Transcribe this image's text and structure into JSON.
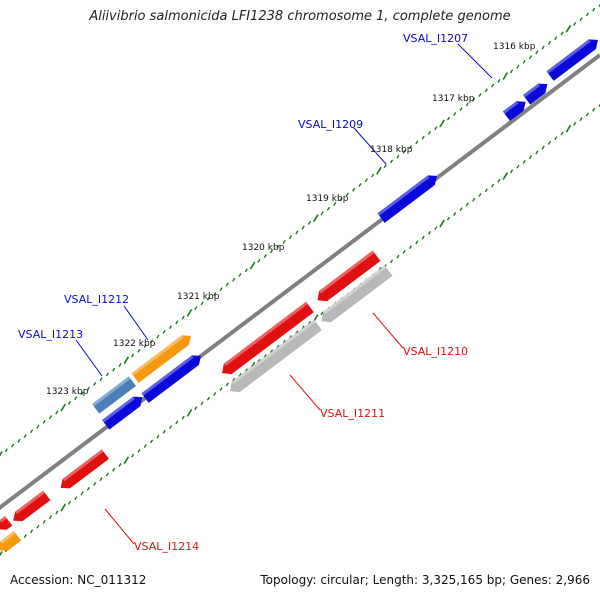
{
  "title": "Aliivibrio salmonicida LFI1238 chromosome 1, complete genome",
  "footer": {
    "accession": "Accession: NC_011312",
    "summary": "Topology: circular; Length: 3,325,165 bp; Genes: 2,966"
  },
  "colors": {
    "forward_gene": "#0a0ad8",
    "reverse_gene": "#e01010",
    "rrna_orange": "#f59a10",
    "steelblue": "#4a7fb8",
    "pseudo_gray": "#b8b8b8",
    "backbone": "#808080",
    "tick_green": "#1a7a1a"
  },
  "ticks": [
    {
      "label": "1316 kbp"
    },
    {
      "label": "1317 kbp"
    },
    {
      "label": "1318 kbp"
    },
    {
      "label": "1319 kbp"
    },
    {
      "label": "1320 kbp"
    },
    {
      "label": "1321 kbp"
    },
    {
      "label": "1322 kbp"
    },
    {
      "label": "1323 kbp"
    }
  ],
  "gene_labels": [
    {
      "name": "VSAL_I1207",
      "strand": "forward"
    },
    {
      "name": "VSAL_I1209",
      "strand": "forward"
    },
    {
      "name": "VSAL_I1212",
      "strand": "forward"
    },
    {
      "name": "VSAL_I1213",
      "strand": "forward"
    },
    {
      "name": "VSAL_I1210",
      "strand": "reverse"
    },
    {
      "name": "VSAL_I1211",
      "strand": "reverse"
    },
    {
      "name": "VSAL_I1214",
      "strand": "reverse"
    }
  ]
}
